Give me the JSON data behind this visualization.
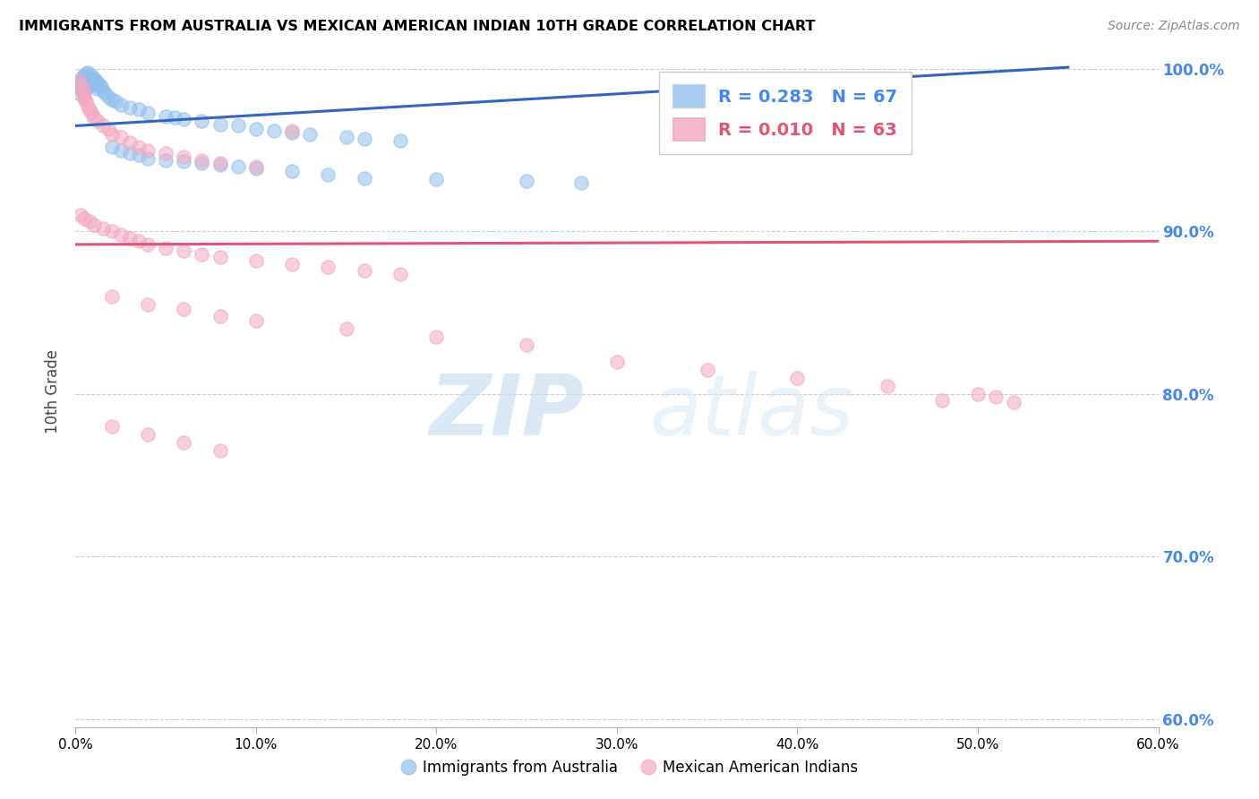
{
  "title": "IMMIGRANTS FROM AUSTRALIA VS MEXICAN AMERICAN INDIAN 10TH GRADE CORRELATION CHART",
  "source": "Source: ZipAtlas.com",
  "ylabel": "10th Grade",
  "xlim": [
    0.0,
    0.6
  ],
  "ylim": [
    0.595,
    1.008
  ],
  "xticks": [
    0.0,
    0.1,
    0.2,
    0.3,
    0.4,
    0.5,
    0.6
  ],
  "xtick_labels": [
    "0.0%",
    "10.0%",
    "20.0%",
    "30.0%",
    "40.0%",
    "50.0%",
    "60.0%"
  ],
  "yticks": [
    0.6,
    0.7,
    0.8,
    0.9,
    1.0
  ],
  "ytick_labels": [
    "60.0%",
    "70.0%",
    "80.0%",
    "90.0%",
    "100.0%"
  ],
  "blue_R": "0.283",
  "blue_N": "67",
  "pink_R": "0.010",
  "pink_N": "63",
  "blue_color": "#92C0EC",
  "pink_color": "#F4A8C0",
  "blue_line_color": "#3366BB",
  "pink_line_color": "#E05575",
  "blue_scatter_x": [
    0.002,
    0.002,
    0.003,
    0.003,
    0.004,
    0.004,
    0.004,
    0.005,
    0.005,
    0.005,
    0.005,
    0.006,
    0.006,
    0.006,
    0.007,
    0.007,
    0.007,
    0.008,
    0.008,
    0.009,
    0.009,
    0.01,
    0.01,
    0.011,
    0.012,
    0.012,
    0.013,
    0.014,
    0.015,
    0.016,
    0.018,
    0.02,
    0.022,
    0.025,
    0.03,
    0.035,
    0.04,
    0.05,
    0.055,
    0.06,
    0.07,
    0.08,
    0.09,
    0.1,
    0.11,
    0.12,
    0.13,
    0.15,
    0.16,
    0.18,
    0.02,
    0.025,
    0.03,
    0.035,
    0.04,
    0.05,
    0.06,
    0.07,
    0.08,
    0.09,
    0.1,
    0.12,
    0.14,
    0.16,
    0.2,
    0.25,
    0.28
  ],
  "blue_scatter_y": [
    0.99,
    0.985,
    0.992,
    0.988,
    0.995,
    0.993,
    0.987,
    0.996,
    0.991,
    0.989,
    0.984,
    0.997,
    0.993,
    0.988,
    0.998,
    0.994,
    0.99,
    0.995,
    0.991,
    0.996,
    0.992,
    0.994,
    0.99,
    0.993,
    0.991,
    0.988,
    0.99,
    0.989,
    0.987,
    0.985,
    0.983,
    0.981,
    0.98,
    0.978,
    0.976,
    0.975,
    0.973,
    0.971,
    0.97,
    0.969,
    0.968,
    0.966,
    0.965,
    0.963,
    0.962,
    0.961,
    0.96,
    0.958,
    0.957,
    0.956,
    0.952,
    0.95,
    0.948,
    0.947,
    0.945,
    0.944,
    0.943,
    0.942,
    0.941,
    0.94,
    0.939,
    0.937,
    0.935,
    0.933,
    0.932,
    0.931,
    0.93
  ],
  "pink_scatter_x": [
    0.002,
    0.003,
    0.004,
    0.005,
    0.005,
    0.006,
    0.007,
    0.008,
    0.009,
    0.01,
    0.012,
    0.015,
    0.018,
    0.02,
    0.025,
    0.03,
    0.035,
    0.04,
    0.05,
    0.06,
    0.07,
    0.08,
    0.1,
    0.003,
    0.005,
    0.008,
    0.01,
    0.015,
    0.02,
    0.025,
    0.03,
    0.035,
    0.04,
    0.05,
    0.06,
    0.07,
    0.08,
    0.1,
    0.12,
    0.14,
    0.16,
    0.18,
    0.02,
    0.04,
    0.06,
    0.08,
    0.1,
    0.15,
    0.2,
    0.25,
    0.12,
    0.3,
    0.35,
    0.4,
    0.45,
    0.5,
    0.51,
    0.52,
    0.48,
    0.02,
    0.04,
    0.06,
    0.08
  ],
  "pink_scatter_y": [
    0.993,
    0.99,
    0.988,
    0.985,
    0.982,
    0.98,
    0.977,
    0.975,
    0.973,
    0.97,
    0.968,
    0.965,
    0.963,
    0.96,
    0.958,
    0.955,
    0.952,
    0.95,
    0.948,
    0.946,
    0.944,
    0.942,
    0.94,
    0.91,
    0.908,
    0.906,
    0.904,
    0.902,
    0.9,
    0.898,
    0.896,
    0.894,
    0.892,
    0.89,
    0.888,
    0.886,
    0.884,
    0.882,
    0.88,
    0.878,
    0.876,
    0.874,
    0.86,
    0.855,
    0.852,
    0.848,
    0.845,
    0.84,
    0.835,
    0.83,
    0.962,
    0.82,
    0.815,
    0.81,
    0.805,
    0.8,
    0.798,
    0.795,
    0.796,
    0.78,
    0.775,
    0.77,
    0.765
  ],
  "blue_trendline_x": [
    0.0,
    0.55
  ],
  "blue_trendline_y": [
    0.965,
    1.001
  ],
  "pink_trendline_x": [
    0.0,
    0.6
  ],
  "pink_trendline_y": [
    0.892,
    0.894
  ],
  "watermark_zip": "ZIP",
  "watermark_atlas": "atlas",
  "background_color": "#FFFFFF",
  "grid_color": "#CCCCCC"
}
